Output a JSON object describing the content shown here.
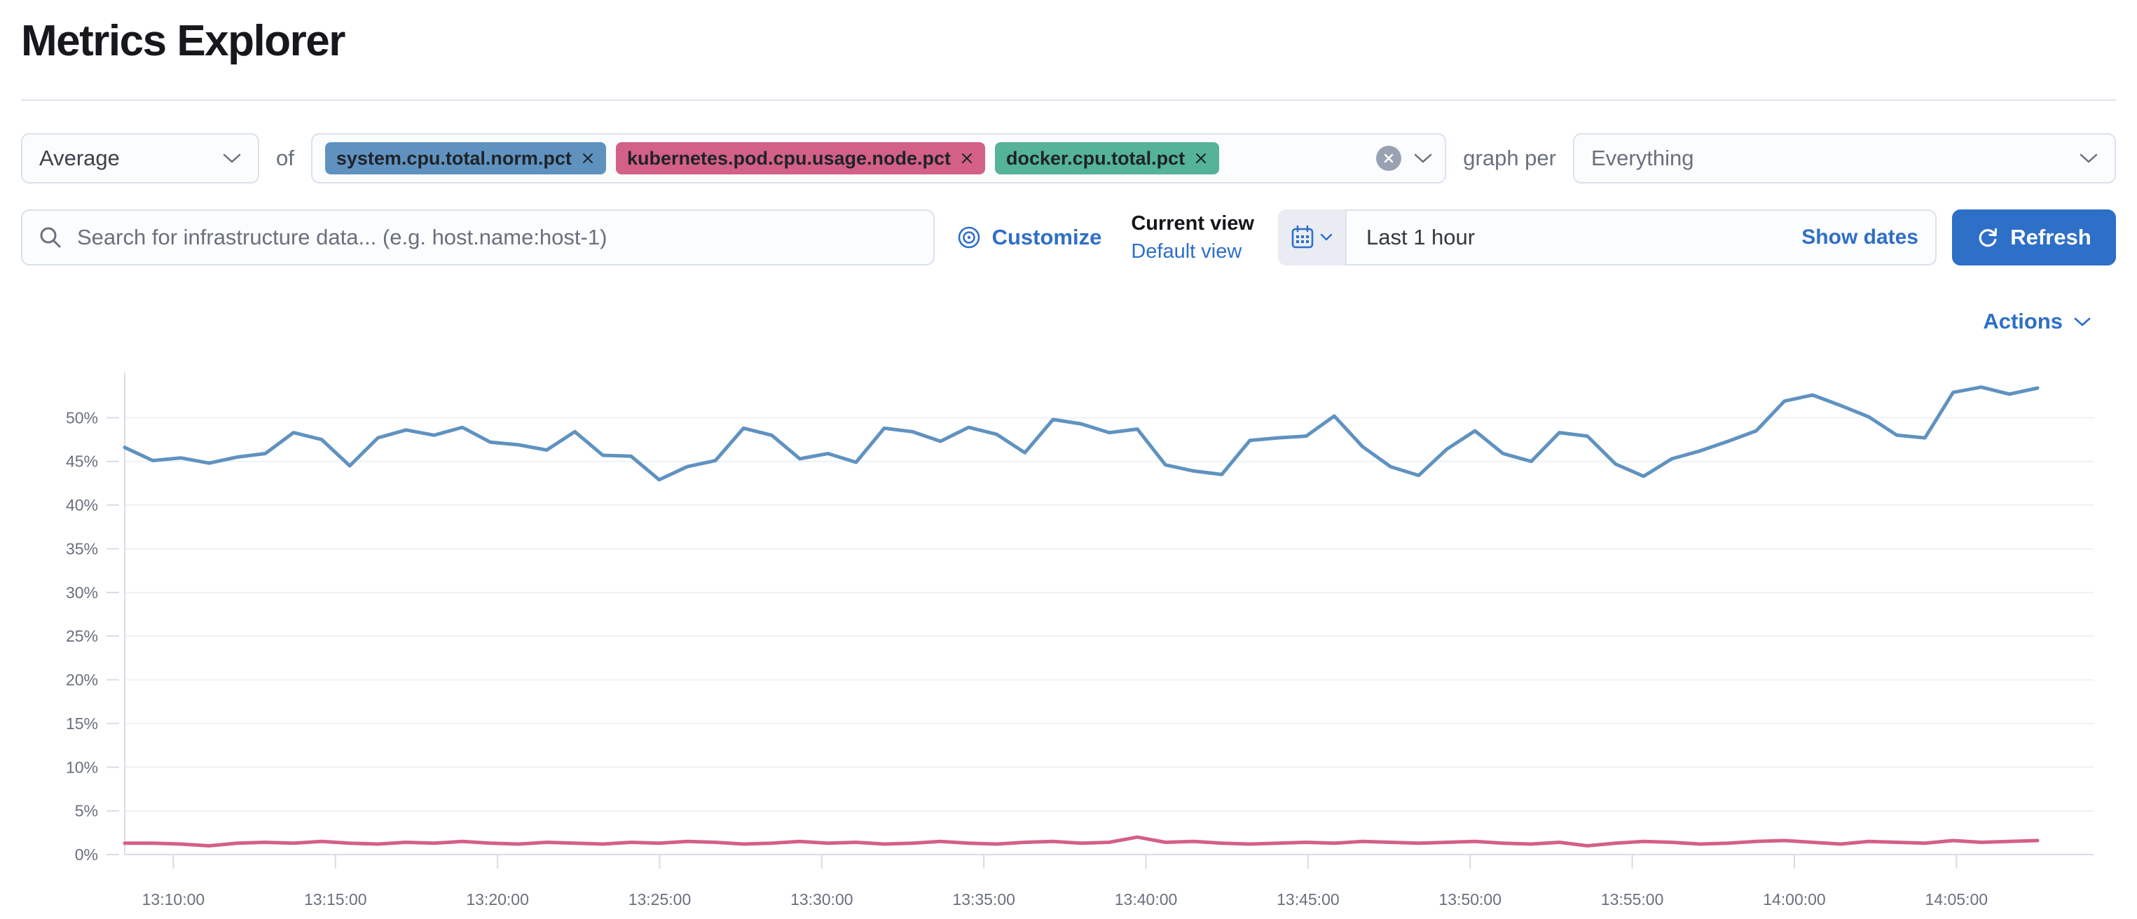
{
  "page": {
    "title": "Metrics Explorer"
  },
  "toolbar": {
    "aggregation": {
      "value": "Average"
    },
    "of_label": "of",
    "metrics": [
      {
        "label": "system.cpu.total.norm.pct",
        "color": "#6092C0"
      },
      {
        "label": "kubernetes.pod.cpu.usage.node.pct",
        "color": "#D36086"
      },
      {
        "label": "docker.cpu.total.pct",
        "color": "#54B399"
      }
    ],
    "graph_per_label": "graph per",
    "group_by": {
      "value": "Everything"
    }
  },
  "search": {
    "placeholder": "Search for infrastructure data... (e.g. host.name:host-1)"
  },
  "view_controls": {
    "customize_label": "Customize",
    "current_view_label": "Current view",
    "default_view_label": "Default view"
  },
  "time_picker": {
    "value": "Last 1 hour",
    "show_dates_label": "Show dates",
    "refresh_label": "Refresh"
  },
  "actions_label": "Actions",
  "icons": [
    "chevron-down-icon",
    "remove-metric-icon",
    "clear-selection-icon",
    "search-icon",
    "eye-icon",
    "calendar-icon",
    "refresh-icon"
  ],
  "colors": {
    "accent": "#2e6fc7",
    "text": "#343741",
    "muted": "#69707d",
    "series_blue": "#6092C0",
    "series_pink": "#D36086",
    "tag_green": "#54B399"
  },
  "chart_data": {
    "type": "line",
    "title": "",
    "xlabel": "",
    "ylabel": "",
    "legend": "none",
    "grid": "horizontal",
    "ylim": [
      0,
      55
    ],
    "y_tick_labels": [
      "0%",
      "5%",
      "10%",
      "15%",
      "20%",
      "25%",
      "30%",
      "35%",
      "40%",
      "45%",
      "50%"
    ],
    "x_tick_labels": [
      "13:10:00",
      "13:15:00",
      "13:20:00",
      "13:25:00",
      "13:30:00",
      "13:35:00",
      "13:40:00",
      "13:45:00",
      "13:50:00",
      "13:55:00",
      "14:00:00",
      "14:05:00"
    ],
    "x_axis": {
      "start_min": 0,
      "end_min": 59,
      "tick_start_min": 1.5,
      "tick_interval_min": 5
    },
    "series": [
      {
        "name": "avg system.cpu.total.norm.pct",
        "color": "#6092C0",
        "unit": "%",
        "values": [
          46.6,
          45.1,
          45.4,
          44.8,
          45.5,
          45.9,
          48.3,
          47.5,
          44.5,
          47.7,
          48.6,
          48.0,
          48.9,
          47.2,
          46.9,
          46.3,
          48.4,
          45.7,
          45.6,
          42.9,
          44.4,
          45.1,
          48.8,
          48.0,
          45.3,
          45.9,
          44.9,
          48.8,
          48.4,
          47.3,
          48.9,
          48.1,
          46.0,
          49.8,
          49.3,
          48.3,
          48.7,
          44.6,
          43.9,
          43.5,
          47.4,
          47.7,
          47.9,
          50.2,
          46.7,
          44.4,
          43.4,
          46.4,
          48.5,
          45.9,
          45.0,
          48.3,
          47.9,
          44.7,
          43.3,
          45.3,
          46.2,
          47.3,
          48.5,
          51.9,
          52.6,
          51.4,
          50.1,
          48.0,
          47.7,
          52.9,
          53.5,
          52.7,
          53.4
        ]
      },
      {
        "name": "avg kubernetes.pod.cpu.usage.node.pct",
        "color": "#D36086",
        "unit": "%",
        "values": [
          1.3,
          1.3,
          1.2,
          1.0,
          1.3,
          1.4,
          1.3,
          1.5,
          1.3,
          1.2,
          1.4,
          1.3,
          1.5,
          1.3,
          1.2,
          1.4,
          1.3,
          1.2,
          1.4,
          1.3,
          1.5,
          1.4,
          1.2,
          1.3,
          1.5,
          1.3,
          1.4,
          1.2,
          1.3,
          1.5,
          1.3,
          1.2,
          1.4,
          1.5,
          1.3,
          1.4,
          2.0,
          1.4,
          1.5,
          1.3,
          1.2,
          1.3,
          1.4,
          1.3,
          1.5,
          1.4,
          1.3,
          1.4,
          1.5,
          1.3,
          1.2,
          1.4,
          1.0,
          1.3,
          1.5,
          1.4,
          1.2,
          1.3,
          1.5,
          1.6,
          1.4,
          1.2,
          1.5,
          1.4,
          1.3,
          1.6,
          1.4,
          1.5,
          1.6
        ]
      }
    ]
  }
}
